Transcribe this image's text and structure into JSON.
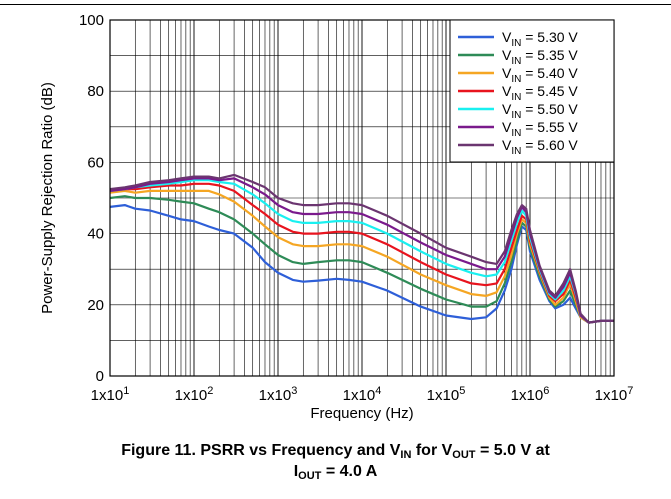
{
  "chart_data": {
    "type": "line",
    "x_scale": "log",
    "x_tick_labels": [
      {
        "base": "1x10",
        "exp": "1"
      },
      {
        "base": "1x10",
        "exp": "2"
      },
      {
        "base": "1x10",
        "exp": "3"
      },
      {
        "base": "1x10",
        "exp": "4"
      },
      {
        "base": "1x10",
        "exp": "5"
      },
      {
        "base": "1x10",
        "exp": "6"
      },
      {
        "base": "1x10",
        "exp": "7"
      }
    ],
    "xlim": [
      10,
      10000000
    ],
    "ylim": [
      0,
      100
    ],
    "y_ticks": [
      0,
      20,
      40,
      60,
      80,
      100
    ],
    "xlabel": "Frequency (Hz)",
    "ylabel": "Power-Supply Rejection Ratio (dB)",
    "grid": true,
    "legend_position": "top-right",
    "x": [
      10,
      15,
      20,
      30,
      50,
      70,
      100,
      150,
      200,
      300,
      500,
      700,
      1000,
      1500,
      2000,
      3000,
      5000,
      7000,
      10000,
      20000,
      50000,
      100000,
      200000,
      300000,
      400000,
      500000,
      600000,
      700000,
      800000,
      900000,
      1000000,
      1300000,
      1700000,
      2000000,
      2500000,
      3000000,
      3500000,
      4000000,
      5000000,
      7000000,
      10000000
    ],
    "series": [
      {
        "name": "5.30 V",
        "color": "#2e5fd8",
        "values": [
          47.5,
          48,
          47,
          46.5,
          45,
          44,
          43.5,
          42,
          41,
          40,
          36,
          32,
          29,
          27,
          26.5,
          26.8,
          27.3,
          27,
          26.5,
          24,
          19.5,
          17,
          16,
          16.5,
          19,
          24,
          30,
          37,
          42,
          41,
          35,
          27,
          21,
          19,
          20,
          22,
          19,
          16.5,
          15,
          15.5,
          15.5
        ]
      },
      {
        "name": "5.35 V",
        "color": "#2e8b57",
        "values": [
          50,
          50.5,
          50,
          50,
          49.5,
          49,
          48.5,
          47,
          46,
          44,
          40,
          37,
          34,
          32,
          31.5,
          32,
          32.5,
          32.5,
          32,
          29,
          24.5,
          21.5,
          19.5,
          19.5,
          21,
          26,
          32,
          38,
          43,
          42,
          36,
          28,
          21.5,
          19.5,
          21,
          24,
          20,
          16.5,
          15,
          15.5,
          15.5
        ]
      },
      {
        "name": "5.40 V",
        "color": "#f5a623",
        "values": [
          51.5,
          52,
          51.5,
          52,
          52,
          52,
          52,
          52,
          51,
          49,
          45,
          42,
          39,
          37,
          36.5,
          36.5,
          37,
          37,
          36.5,
          33.5,
          28.5,
          25.5,
          23,
          22.5,
          23.5,
          28,
          34,
          40,
          44,
          43,
          37,
          29,
          22,
          20,
          22,
          26,
          21,
          16.5,
          15,
          15.5,
          15.5
        ]
      },
      {
        "name": "5.45 V",
        "color": "#e8141e",
        "values": [
          52,
          52.5,
          52.5,
          53,
          53.5,
          53.5,
          54,
          54,
          53.5,
          52,
          48,
          45.5,
          42.5,
          40.5,
          40,
          40,
          40.5,
          40.5,
          40,
          37,
          32,
          28.5,
          26,
          25.5,
          26,
          30,
          36,
          41,
          45,
          44,
          38,
          29.5,
          22.5,
          21,
          23,
          27,
          22,
          17,
          15,
          15.5,
          15.5
        ]
      },
      {
        "name": "5.50 V",
        "color": "#19f0f0",
        "values": [
          52,
          52.5,
          53,
          53.5,
          54,
          54.5,
          55,
          55,
          54.5,
          54,
          51,
          48.5,
          45.5,
          43.5,
          43,
          43,
          43.5,
          43.5,
          43,
          40,
          35,
          31.5,
          29,
          28,
          28.5,
          32,
          38,
          43,
          46.5,
          45,
          39,
          30,
          23,
          21.5,
          24,
          28,
          23,
          17,
          15,
          15.5,
          15.5
        ]
      },
      {
        "name": "5.55 V",
        "color": "#7a1a8c",
        "values": [
          52,
          52.5,
          53,
          54,
          54.5,
          55,
          55.5,
          55.5,
          55,
          55.5,
          53,
          51,
          48,
          46,
          45.5,
          45.5,
          46,
          46,
          45.5,
          42.5,
          37.5,
          34,
          31.5,
          30,
          30,
          33.5,
          39.5,
          44.5,
          47.5,
          46,
          40,
          30.5,
          23.5,
          22,
          25,
          29,
          23.5,
          17,
          15,
          15.5,
          15.5
        ]
      },
      {
        "name": "5.60 V",
        "color": "#6b3570",
        "values": [
          52.5,
          53,
          53.5,
          54.5,
          55,
          55.5,
          56,
          56,
          55.5,
          56.5,
          54.5,
          53,
          50,
          48.5,
          48,
          48,
          48.5,
          48.5,
          48,
          45,
          40,
          36,
          33.5,
          32,
          31.5,
          35,
          41,
          45.5,
          48,
          47,
          41,
          31,
          24,
          22.5,
          26,
          30,
          24,
          17.5,
          15,
          15.5,
          15.5
        ]
      }
    ],
    "legend_prefix": "V",
    "legend_sub": "IN",
    "legend_eq": " = "
  },
  "caption": {
    "line1_a": "Figure 11. PSRR vs Frequency and V",
    "line1_sub1": "IN",
    "line1_b": " for V",
    "line1_sub2": "OUT",
    "line1_c": " = 5.0 V at",
    "line2_a": "I",
    "line2_sub": "OUT",
    "line2_b": " = 4.0 A"
  }
}
